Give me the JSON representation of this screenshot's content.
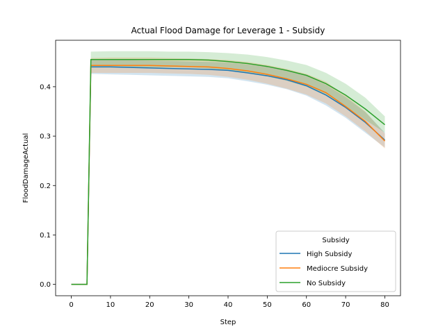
{
  "chart_data": {
    "type": "line",
    "title": "Actual Flood Damage for Leverage 1 - Subsidy",
    "xlabel": "Step",
    "ylabel": "FloodDamageActual",
    "xlim": [
      -4,
      84
    ],
    "ylim": [
      -0.023,
      0.494
    ],
    "xticks": [
      0,
      10,
      20,
      30,
      40,
      50,
      60,
      70,
      80
    ],
    "yticks": [
      0.0,
      0.1,
      0.2,
      0.3,
      0.4
    ],
    "ytick_labels": [
      "0.0",
      "0.1",
      "0.2",
      "0.3",
      "0.4"
    ],
    "grid": false,
    "legend": {
      "title": "Subsidy",
      "placement": "lower right"
    },
    "x": [
      0,
      1,
      2,
      3,
      4,
      5,
      10,
      15,
      20,
      25,
      30,
      35,
      40,
      45,
      50,
      55,
      60,
      65,
      70,
      75,
      80
    ],
    "series": [
      {
        "name": "High Subsidy",
        "color": "#1f77b4",
        "values": [
          0,
          0,
          0,
          0,
          0,
          0.44,
          0.44,
          0.439,
          0.438,
          0.437,
          0.436,
          0.435,
          0.433,
          0.428,
          0.422,
          0.414,
          0.402,
          0.383,
          0.358,
          0.328,
          0.292
        ],
        "lower": [
          0,
          0,
          0,
          0,
          0,
          0.426,
          0.425,
          0.424,
          0.423,
          0.422,
          0.421,
          0.42,
          0.417,
          0.411,
          0.404,
          0.395,
          0.382,
          0.362,
          0.337,
          0.307,
          0.277
        ],
        "upper": [
          0,
          0,
          0,
          0,
          0,
          0.454,
          0.455,
          0.454,
          0.453,
          0.452,
          0.451,
          0.45,
          0.449,
          0.445,
          0.44,
          0.433,
          0.422,
          0.404,
          0.379,
          0.349,
          0.307
        ]
      },
      {
        "name": "Mediocre Subsidy",
        "color": "#ff7f0e",
        "values": [
          0,
          0,
          0,
          0,
          0,
          0.443,
          0.443,
          0.443,
          0.443,
          0.442,
          0.441,
          0.44,
          0.437,
          0.432,
          0.425,
          0.416,
          0.405,
          0.388,
          0.36,
          0.33,
          0.29
        ],
        "lower": [
          0,
          0,
          0,
          0,
          0,
          0.428,
          0.428,
          0.428,
          0.428,
          0.427,
          0.426,
          0.424,
          0.42,
          0.414,
          0.406,
          0.396,
          0.384,
          0.366,
          0.34,
          0.31,
          0.275
        ],
        "upper": [
          0,
          0,
          0,
          0,
          0,
          0.458,
          0.459,
          0.459,
          0.459,
          0.458,
          0.457,
          0.456,
          0.454,
          0.45,
          0.444,
          0.436,
          0.426,
          0.41,
          0.382,
          0.35,
          0.305
        ]
      },
      {
        "name": "No Subsidy",
        "color": "#2ca02c",
        "values": [
          0,
          0,
          0,
          0,
          0,
          0.455,
          0.455,
          0.455,
          0.455,
          0.455,
          0.455,
          0.454,
          0.451,
          0.447,
          0.441,
          0.433,
          0.423,
          0.406,
          0.383,
          0.355,
          0.323
        ],
        "lower": [
          0,
          0,
          0,
          0,
          0,
          0.439,
          0.439,
          0.439,
          0.439,
          0.439,
          0.439,
          0.437,
          0.433,
          0.428,
          0.421,
          0.412,
          0.4,
          0.382,
          0.36,
          0.333,
          0.307
        ],
        "upper": [
          0,
          0,
          0,
          0,
          0,
          0.471,
          0.472,
          0.472,
          0.472,
          0.471,
          0.471,
          0.47,
          0.468,
          0.465,
          0.46,
          0.453,
          0.444,
          0.428,
          0.406,
          0.378,
          0.34
        ]
      }
    ]
  }
}
